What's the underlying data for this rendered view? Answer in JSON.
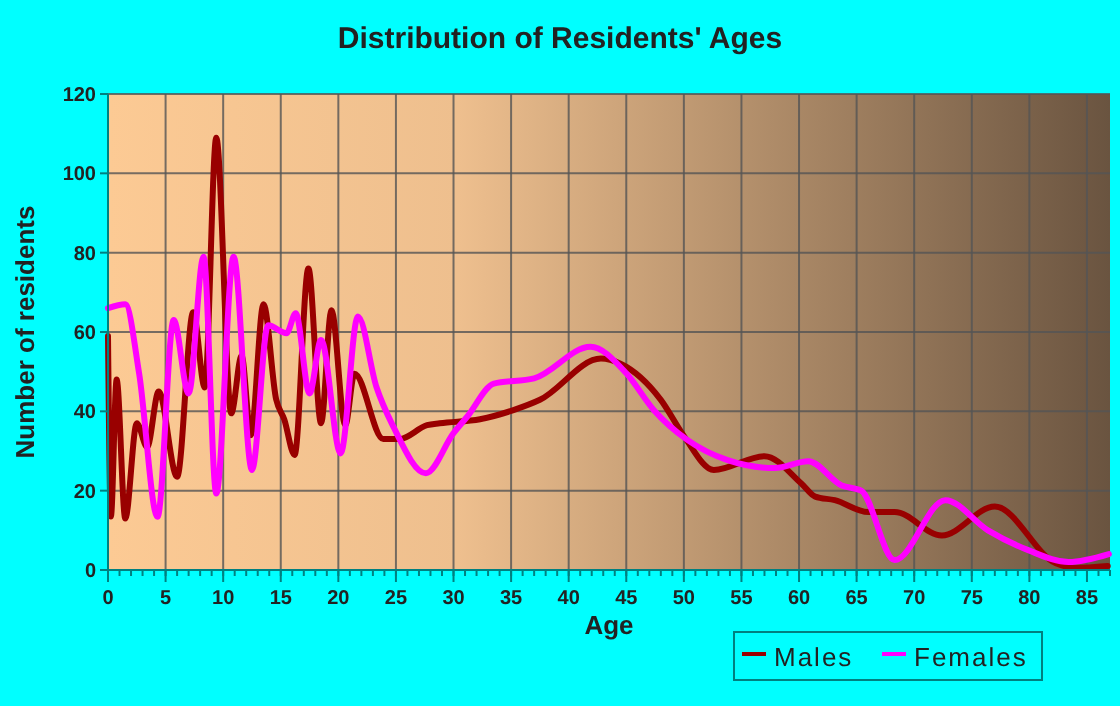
{
  "chart_data": {
    "type": "line",
    "title": "Distribution of Residents' Ages",
    "xlabel": "Age",
    "ylabel": "Number of residents",
    "xlim": [
      0,
      87
    ],
    "ylim": [
      0,
      120
    ],
    "xticks": [
      0,
      5,
      10,
      15,
      20,
      25,
      30,
      35,
      40,
      45,
      50,
      55,
      60,
      65,
      70,
      75,
      80,
      85
    ],
    "yticks": [
      0,
      20,
      40,
      60,
      80,
      100,
      120
    ],
    "grid": true,
    "legend": "bottom",
    "series": [
      {
        "name": "Males",
        "color": "#990000",
        "x": [
          0,
          0.25,
          0.75,
          1.5,
          2.5,
          3.4,
          4.4,
          6,
          7.4,
          8.4,
          9.4,
          10.7,
          11.6,
          12.4,
          13.5,
          14.6,
          15.3,
          16.2,
          17.4,
          18.5,
          19.4,
          20.6,
          21.4,
          23.9,
          25.3,
          27.7,
          28.8,
          32.3,
          35.2,
          37.5,
          42.8,
          44.5,
          48,
          50,
          52.6,
          57,
          60.2,
          61.4,
          63.1,
          66,
          68.3,
          72.4,
          77,
          82.3,
          84,
          86.8
        ],
        "values": [
          59,
          13.5,
          48,
          13,
          37,
          31,
          45,
          23.5,
          65,
          46,
          109,
          39.5,
          54,
          34,
          67,
          43,
          38,
          29,
          76,
          37,
          65.5,
          36.5,
          49.5,
          33,
          33,
          36.5,
          37,
          38,
          40.3,
          42.9,
          53.3,
          52,
          42.9,
          33.8,
          25.2,
          28.7,
          21.8,
          18.5,
          17.6,
          14.6,
          14.6,
          8.7,
          16,
          1.7,
          0.5,
          1
        ]
      },
      {
        "name": "Females",
        "color": "#ff00ff",
        "x": [
          0,
          1.5,
          2.7,
          4.3,
          5.7,
          7,
          8.3,
          9.4,
          10.9,
          12.5,
          13.9,
          15.5,
          16.3,
          17.5,
          18.5,
          20.2,
          21.7,
          23.3,
          24.8,
          27.6,
          30,
          31.2,
          33.5,
          37,
          41.9,
          45,
          47.4,
          50.3,
          53.8,
          57.9,
          60.8,
          63.7,
          65.4,
          68.3,
          72.7,
          76.4,
          79.9,
          83.4,
          86.9
        ],
        "values": [
          66,
          67,
          49.6,
          13.4,
          63,
          44.5,
          79,
          19.3,
          79,
          25.2,
          61.7,
          59.7,
          64.7,
          44.5,
          58,
          29.4,
          63.9,
          46.2,
          36,
          24.4,
          34.5,
          38.7,
          47,
          48.3,
          56.3,
          49.6,
          40.3,
          32.8,
          27.7,
          25.7,
          27.4,
          21.3,
          20,
          2.5,
          17.6,
          10,
          5,
          2,
          4
        ]
      }
    ]
  }
}
